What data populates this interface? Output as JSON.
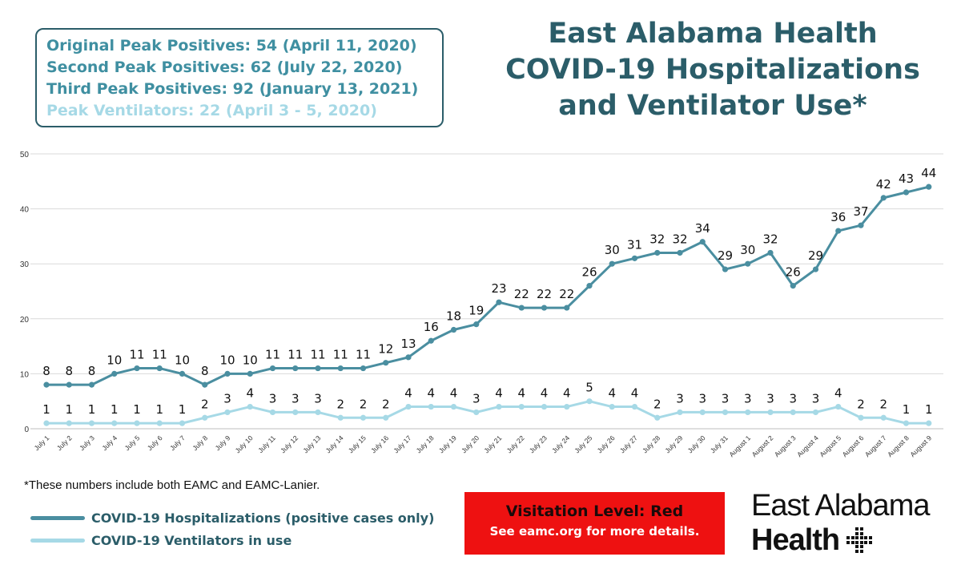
{
  "peaks": {
    "items": [
      {
        "text": "Original Peak Positives: 54 (April 11, 2020)",
        "color": "#3f8fa1"
      },
      {
        "text": "Second Peak Positives: 62 (July 22, 2020)",
        "color": "#3f8fa1"
      },
      {
        "text": "Third Peak Positives: 92 (January 13, 2021)",
        "color": "#3f8fa1"
      },
      {
        "text": "Peak Ventilators: 22 (April 3 - 5, 2020)",
        "color": "#a6d9e6"
      }
    ]
  },
  "title": {
    "line1": "East Alabama Health",
    "line2": "COVID-19 Hospitalizations",
    "line3": "and Ventilator Use*"
  },
  "chart_data": {
    "type": "line",
    "title": "East Alabama Health COVID-19 Hospitalizations and Ventilator Use*",
    "categories": [
      "July 1",
      "July 2",
      "July 3",
      "July 4",
      "July 5",
      "July 6",
      "July 7",
      "July 8",
      "July 9",
      "July 10",
      "July 11",
      "July 12",
      "July 13",
      "July 14",
      "July 15",
      "July 16",
      "July 17",
      "July 18",
      "July 19",
      "July 20",
      "July 21",
      "July 22",
      "July 23",
      "July 24",
      "July 25",
      "July 26",
      "July 27",
      "July 28",
      "July 29",
      "July 30",
      "July 31",
      "August 1",
      "August 2",
      "August 3",
      "August 4",
      "August 5",
      "August 6",
      "August 7",
      "August 8",
      "August 9"
    ],
    "ylim": [
      0,
      50
    ],
    "yticks": [
      0,
      10,
      20,
      30,
      40,
      50
    ],
    "grid": true,
    "xlabel": "",
    "ylabel": "",
    "series": [
      {
        "name": "COVID-19 Hospitalizations (positive cases only)",
        "color": "#4a8ea0",
        "width": 3,
        "values": [
          8,
          8,
          8,
          10,
          11,
          11,
          10,
          8,
          10,
          10,
          11,
          11,
          11,
          11,
          11,
          12,
          13,
          16,
          18,
          19,
          23,
          22,
          22,
          22,
          26,
          30,
          31,
          32,
          32,
          34,
          29,
          30,
          32,
          26,
          29,
          36,
          37,
          42,
          43,
          44
        ]
      },
      {
        "name": "COVID-19 Ventilators in use",
        "color": "#a6d9e6",
        "width": 3,
        "values": [
          1,
          1,
          1,
          1,
          1,
          1,
          1,
          2,
          3,
          4,
          3,
          3,
          3,
          2,
          2,
          2,
          4,
          4,
          4,
          3,
          4,
          4,
          4,
          4,
          5,
          4,
          4,
          2,
          3,
          3,
          3,
          3,
          3,
          3,
          3,
          4,
          2,
          2,
          1,
          1
        ]
      }
    ]
  },
  "footnote": "*These numbers include both EAMC and EAMC-Lanier.",
  "legend": [
    {
      "label": "COVID-19 Hospitalizations (positive cases only)",
      "color": "#4a8ea0"
    },
    {
      "label": "COVID-19 Ventilators in use",
      "color": "#a6d9e6"
    }
  ],
  "visitation": {
    "level": "Visitation Level: Red",
    "details": "See eamc.org for more details."
  },
  "logo": {
    "line1": "East Alabama",
    "line2": "Health",
    "alt": "East Alabama Health logo"
  }
}
